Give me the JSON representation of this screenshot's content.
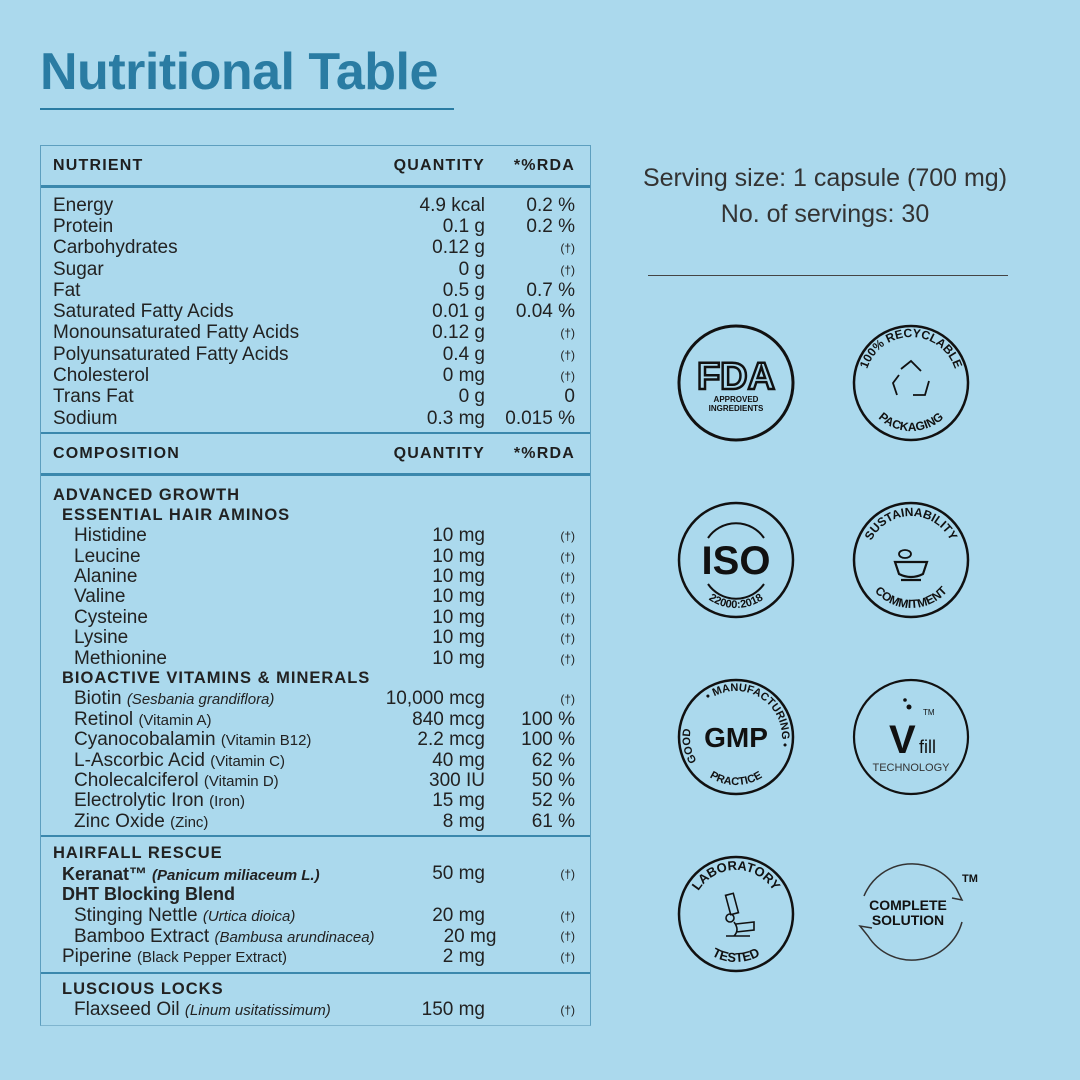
{
  "title": "Nutritional Table",
  "serving": {
    "size": "Serving size: 1 capsule (700 mg)",
    "count": "No. of servings: 30"
  },
  "nutrition": {
    "headers": [
      "NUTRIENT",
      "QUANTITY",
      "*%RDA"
    ],
    "rows": [
      {
        "name": "Energy",
        "qty": "4.9 kcal",
        "rda": "0.2 %"
      },
      {
        "name": "Protein",
        "qty": "0.1 g",
        "rda": "0.2 %"
      },
      {
        "name": "Carbohydrates",
        "qty": "0.12 g",
        "rda": "(†)"
      },
      {
        "name": "Sugar",
        "qty": "0 g",
        "rda": "(†)"
      },
      {
        "name": "Fat",
        "qty": "0.5 g",
        "rda": "0.7 %"
      },
      {
        "name": "Saturated Fatty Acids",
        "qty": "0.01 g",
        "rda": "0.04 %"
      },
      {
        "name": "Monounsaturated Fatty Acids",
        "qty": "0.12 g",
        "rda": "(†)"
      },
      {
        "name": "Polyunsaturated Fatty Acids",
        "qty": "0.4 g",
        "rda": "(†)"
      },
      {
        "name": "Cholesterol",
        "qty": "0 mg",
        "rda": "(†)"
      },
      {
        "name": "Trans Fat",
        "qty": "0 g",
        "rda": "0"
      },
      {
        "name": "Sodium",
        "qty": "0.3 mg",
        "rda": "0.015 %"
      }
    ]
  },
  "composition": {
    "headers": [
      "COMPOSITION",
      "QUANTITY",
      "*%RDA"
    ],
    "sections": [
      {
        "rows": [
          {
            "kind": "heading",
            "level": 0,
            "name": "ADVANCED GROWTH"
          },
          {
            "kind": "heading",
            "level": 1,
            "name": "ESSENTIAL HAIR AMINOS"
          },
          {
            "level": 2,
            "name": "Histidine",
            "qty": "10 mg",
            "rda": "(†)"
          },
          {
            "level": 2,
            "name": "Leucine",
            "qty": "10 mg",
            "rda": "(†)"
          },
          {
            "level": 2,
            "name": "Alanine",
            "qty": "10 mg",
            "rda": "(†)"
          },
          {
            "level": 2,
            "name": "Valine",
            "qty": "10 mg",
            "rda": "(†)"
          },
          {
            "level": 2,
            "name": "Cysteine",
            "qty": "10 mg",
            "rda": "(†)"
          },
          {
            "level": 2,
            "name": "Lysine",
            "qty": "10 mg",
            "rda": "(†)"
          },
          {
            "level": 2,
            "name": "Methionine",
            "qty": "10 mg",
            "rda": "(†)"
          },
          {
            "kind": "heading",
            "level": 1,
            "name": "BIOACTIVE VITAMINS & MINERALS"
          },
          {
            "level": 2,
            "name": "Biotin",
            "note": "(Sesbania grandiflora)",
            "italic": true,
            "qty": "10,000 mcg",
            "rda": "(†)"
          },
          {
            "level": 2,
            "name": "Retinol",
            "note": "(Vitamin A)",
            "qty": "840 mcg",
            "rda": "100 %"
          },
          {
            "level": 2,
            "name": "Cyanocobalamin",
            "note": "(Vitamin B12)",
            "qty": "2.2 mcg",
            "rda": "100 %"
          },
          {
            "level": 2,
            "name": "L-Ascorbic Acid",
            "note": "(Vitamin C)",
            "qty": "40 mg",
            "rda": "62 %"
          },
          {
            "level": 2,
            "name": "Cholecalciferol",
            "note": "(Vitamin D)",
            "qty": "300 IU",
            "rda": "50 %"
          },
          {
            "level": 2,
            "name": "Electrolytic Iron",
            "note": "(Iron)",
            "qty": "15 mg",
            "rda": "52 %"
          },
          {
            "level": 2,
            "name": "Zinc Oxide",
            "note": "(Zinc)",
            "qty": "8 mg",
            "rda": "61 %"
          }
        ]
      },
      {
        "rows": [
          {
            "kind": "heading",
            "level": 0,
            "name": "HAIRFALL RESCUE"
          },
          {
            "kind": "subbold",
            "level": 1,
            "name": "Keranat™",
            "note": "(Panicum miliaceum L.)",
            "italic": true,
            "qty": "50 mg",
            "rda": "(†)"
          },
          {
            "kind": "subbold",
            "level": 1,
            "name": "DHT Blocking Blend"
          },
          {
            "level": 2,
            "name": "Stinging Nettle",
            "note": "(Urtica dioica)",
            "italic": true,
            "qty": "20 mg",
            "rda": "(†)"
          },
          {
            "level": 2,
            "name": "Bamboo Extract",
            "note": "(Bambusa arundinacea)",
            "italic": true,
            "qty": "20 mg",
            "rda": "(†)"
          },
          {
            "level": 1,
            "name": "Piperine",
            "note": "(Black Pepper Extract)",
            "qty": "2 mg",
            "rda": "(†)"
          }
        ]
      },
      {
        "rows": [
          {
            "kind": "heading",
            "level": 1,
            "name": "LUSCIOUS LOCKS"
          },
          {
            "level": 2,
            "name": "Flaxseed Oil",
            "note": "(Linum usitatissimum)",
            "italic": true,
            "qty": "150 mg",
            "rda": "(†)"
          }
        ]
      }
    ]
  },
  "badges": {
    "fda": {
      "logo": "FDA",
      "line1": "APPROVED",
      "line2": "INGREDIENTS"
    },
    "recyclable": {
      "top": "100% RECYCLABLE",
      "bottom": "PACKAGING"
    },
    "iso": {
      "logo": "ISO",
      "bottom": "22000:2018"
    },
    "sustainability": {
      "top": "SUSTAINABILITY",
      "bottom": "COMMITMENT"
    },
    "gmp": {
      "logo": "GMP",
      "top": "• MANUFACTURING •",
      "left": "GOOD",
      "bottom": "PRACTICE"
    },
    "vfill": {
      "logo": "V",
      "fill": "fill",
      "tm": "TM",
      "sub": "TECHNOLOGY"
    },
    "lab": {
      "top": "LABORATORY",
      "bottom": "TESTED"
    },
    "complete": {
      "line1": "COMPLETE",
      "line2": "SOLUTION",
      "tm": "TM"
    }
  },
  "colors": {
    "background": "#abd9ed",
    "title": "#2a7ca3",
    "rule": "#3b88ad"
  }
}
